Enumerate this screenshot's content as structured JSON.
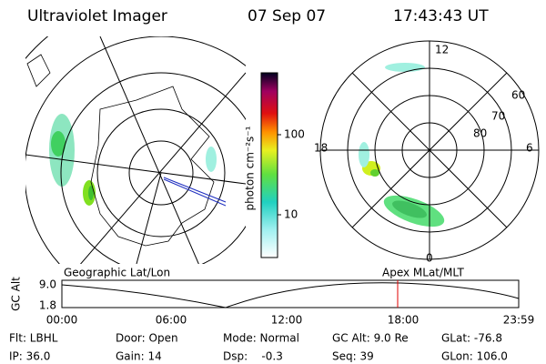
{
  "header": {
    "title": "Ultraviolet Imager",
    "date": "07 Sep 07",
    "time": "17:43:43 UT"
  },
  "colorbar": {
    "label": "photon cm⁻²s⁻¹",
    "ticks": [
      "100",
      "10"
    ]
  },
  "polar_map": {
    "labels": [
      "12",
      "0",
      "18",
      "6",
      "60",
      "70",
      "80"
    ]
  },
  "panel_labels": {
    "left": "Geographic Lat/Lon",
    "right": "Apex MLat/MLT"
  },
  "altitude_plot": {
    "axis_label": "GC Alt",
    "y_labels": [
      "9.0",
      "1.8"
    ],
    "x_labels": [
      "00:00",
      "06:00",
      "12:00",
      "18:00",
      "23:59"
    ]
  },
  "footer": {
    "rows": [
      [
        "Flt: LBHL",
        "Door: Open",
        "Mode: Normal",
        "GC Alt: 9.0 Re",
        "GLat: -76.8"
      ],
      [
        "IP: 36.0",
        "Gain: 14",
        "Dsp:    -0.3",
        "Seq: 39",
        "GLon: 106.0"
      ]
    ]
  }
}
